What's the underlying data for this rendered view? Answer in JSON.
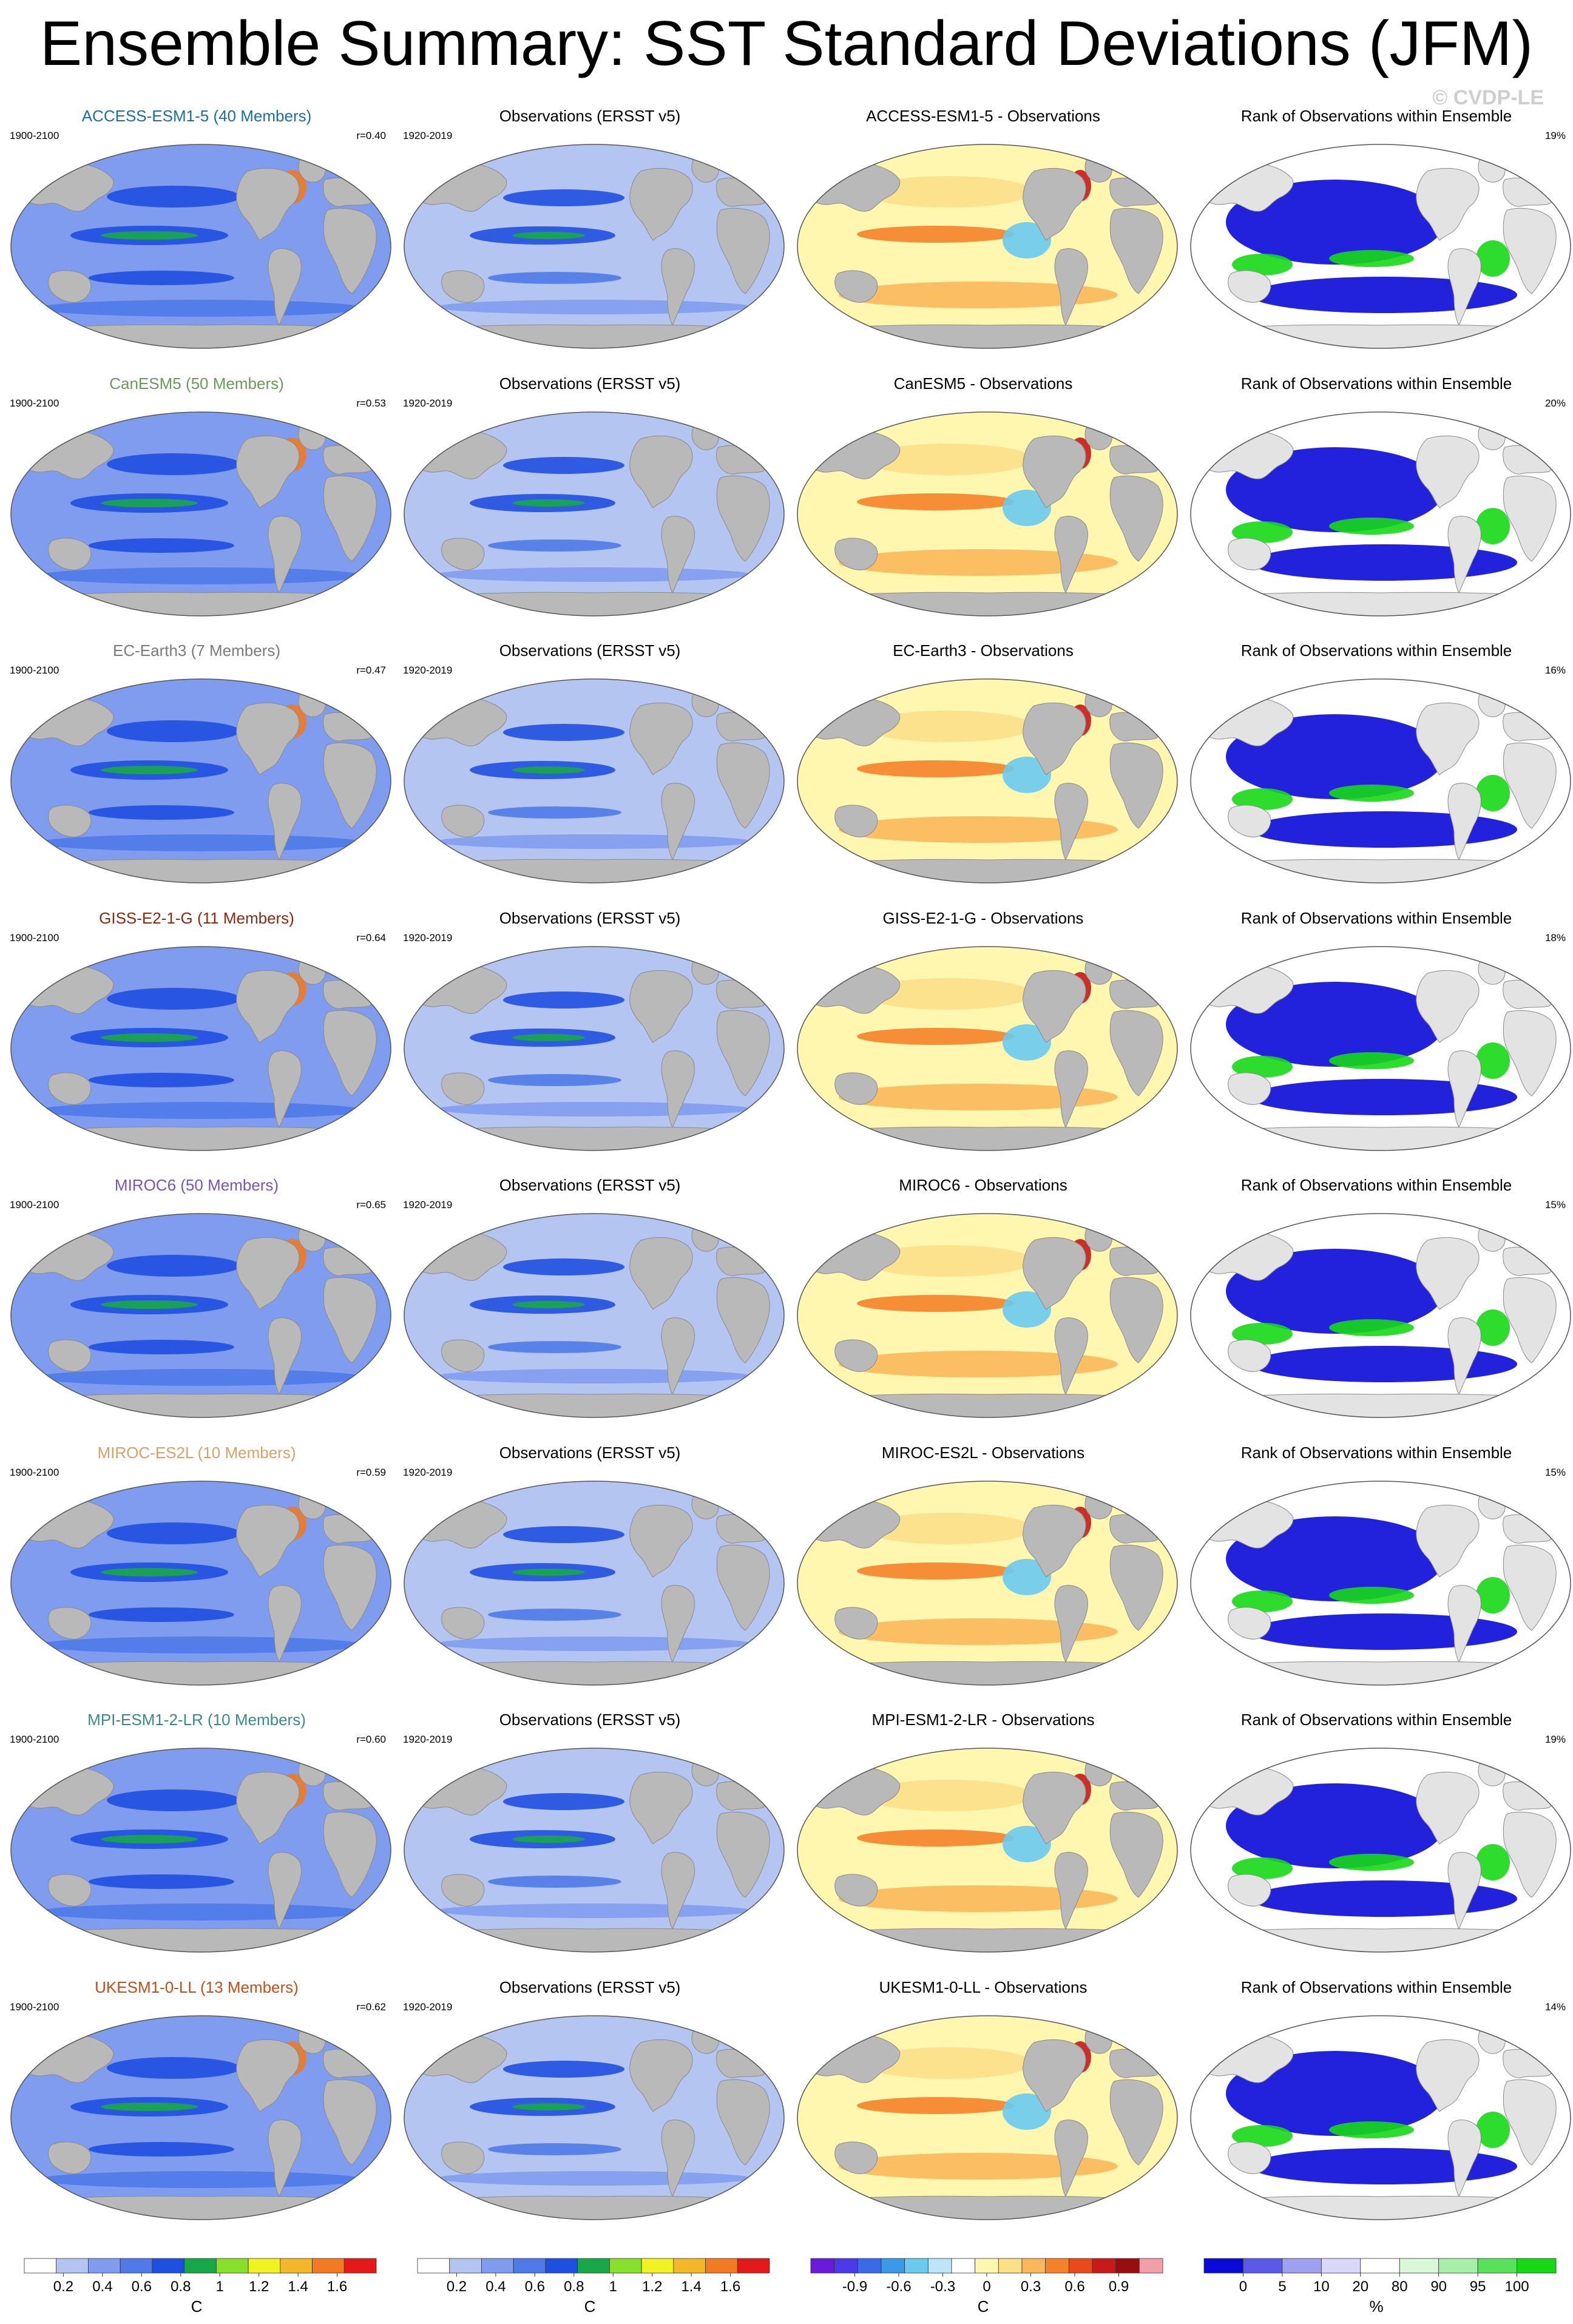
{
  "title": "Ensemble Summary: SST Standard Deviations (JFM)",
  "watermark": "© CVDP-LE",
  "colors": {
    "land": "#b9b9b9",
    "land_rank": "#e3e3e3",
    "model_title_colors": [
      "#1a6fa0",
      "#6a9a5a",
      "#7a7a7a",
      "#8b2a10",
      "#7a55b5",
      "#d9a06a",
      "#3a8a8a",
      "#c0501a"
    ]
  },
  "rows": [
    {
      "model_label": "ACCESS-ESM1-5 (40 Members)",
      "model_period": "1900-2100",
      "r_value": "r=0.40",
      "obs_label": "Observations (ERSST v5)",
      "obs_period": "1920-2019",
      "diff_label": "ACCESS-ESM1-5 - Observations",
      "rank_label": "Rank of Observations within Ensemble",
      "rank_pct": "19%"
    },
    {
      "model_label": "CanESM5 (50 Members)",
      "model_period": "1900-2100",
      "r_value": "r=0.53",
      "obs_label": "Observations (ERSST v5)",
      "obs_period": "1920-2019",
      "diff_label": "CanESM5 - Observations",
      "rank_label": "Rank of Observations within Ensemble",
      "rank_pct": "20%"
    },
    {
      "model_label": "EC-Earth3 (7 Members)",
      "model_period": "1900-2100",
      "r_value": "r=0.47",
      "obs_label": "Observations (ERSST v5)",
      "obs_period": "1920-2019",
      "diff_label": "EC-Earth3 - Observations",
      "rank_label": "Rank of Observations within Ensemble",
      "rank_pct": "16%"
    },
    {
      "model_label": "GISS-E2-1-G (11 Members)",
      "model_period": "1900-2100",
      "r_value": "r=0.64",
      "obs_label": "Observations (ERSST v5)",
      "obs_period": "1920-2019",
      "diff_label": "GISS-E2-1-G - Observations",
      "rank_label": "Rank of Observations within Ensemble",
      "rank_pct": "18%"
    },
    {
      "model_label": "MIROC6 (50 Members)",
      "model_period": "1900-2100",
      "r_value": "r=0.65",
      "obs_label": "Observations (ERSST v5)",
      "obs_period": "1920-2019",
      "diff_label": "MIROC6 - Observations",
      "rank_label": "Rank of Observations within Ensemble",
      "rank_pct": "15%"
    },
    {
      "model_label": "MIROC-ES2L (10 Members)",
      "model_period": "1900-2100",
      "r_value": "r=0.59",
      "obs_label": "Observations (ERSST v5)",
      "obs_period": "1920-2019",
      "diff_label": "MIROC-ES2L - Observations",
      "rank_label": "Rank of Observations within Ensemble",
      "rank_pct": "15%"
    },
    {
      "model_label": "MPI-ESM1-2-LR (10 Members)",
      "model_period": "1900-2100",
      "r_value": "r=0.60",
      "obs_label": "Observations (ERSST v5)",
      "obs_period": "1920-2019",
      "diff_label": "MPI-ESM1-2-LR - Observations",
      "rank_label": "Rank of Observations within Ensemble",
      "rank_pct": "19%"
    },
    {
      "model_label": "UKESM1-0-LL (13 Members)",
      "model_period": "1900-2100",
      "r_value": "r=0.62",
      "obs_label": "Observations (ERSST v5)",
      "obs_period": "1920-2019",
      "diff_label": "UKESM1-0-LL - Observations",
      "rank_label": "Rank of Observations within Ensemble",
      "rank_pct": "14%"
    }
  ],
  "legends": [
    {
      "unit": "C",
      "colors": [
        "#ffffff",
        "#b4c5f2",
        "#7f9cee",
        "#4f7ae8",
        "#1f4fe0",
        "#18a848",
        "#86e02c",
        "#f2f222",
        "#f2b82a",
        "#f27a22",
        "#e41a1a"
      ],
      "ticks": [
        "0.2",
        "0.4",
        "0.6",
        "0.8",
        "1",
        "1.2",
        "1.4",
        "1.6"
      ]
    },
    {
      "unit": "C",
      "colors": [
        "#ffffff",
        "#b4c5f2",
        "#7f9cee",
        "#4f7ae8",
        "#1f4fe0",
        "#18a848",
        "#86e02c",
        "#f2f222",
        "#f2b82a",
        "#f27a22",
        "#e41a1a"
      ],
      "ticks": [
        "0.2",
        "0.4",
        "0.6",
        "0.8",
        "1",
        "1.2",
        "1.4",
        "1.6"
      ]
    },
    {
      "unit": "C",
      "colors": [
        "#6a1ad8",
        "#4a3ae8",
        "#3a6ae8",
        "#3a9ae8",
        "#6acaf0",
        "#bfe6f8",
        "#ffffff",
        "#fff6b0",
        "#fde08a",
        "#fbb85a",
        "#f5822a",
        "#e84a1a",
        "#c81a1a",
        "#980e0e",
        "#f2a0a8"
      ],
      "ticks": [
        "-0.9",
        "-0.6",
        "-0.3",
        "0",
        "0.3",
        "0.6",
        "0.9"
      ]
    },
    {
      "unit": "%",
      "colors": [
        "#0a0ad8",
        "#5a5ae8",
        "#a0a0f0",
        "#d8d8f8",
        "#ffffff",
        "#d8f8d8",
        "#a8f0a8",
        "#5ae05a",
        "#16d816"
      ],
      "ticks": [
        "0",
        "5",
        "10",
        "20",
        "80",
        "90",
        "95",
        "100"
      ]
    }
  ]
}
